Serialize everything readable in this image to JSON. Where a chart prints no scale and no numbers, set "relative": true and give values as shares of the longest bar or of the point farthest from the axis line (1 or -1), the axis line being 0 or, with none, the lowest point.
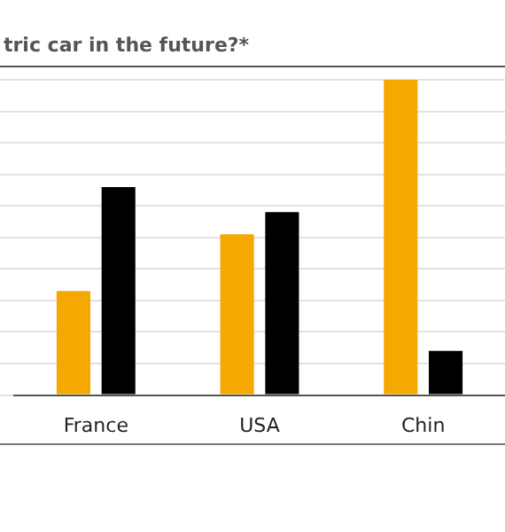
{
  "chart_data": {
    "type": "bar",
    "title": "tric car in the future?*",
    "categories": [
      "France",
      "USA",
      "Chin"
    ],
    "series": [
      {
        "color": "#f5a800",
        "values": [
          0.33,
          0.51,
          1
        ]
      },
      {
        "color": "#000000",
        "values": [
          0.66,
          0.58,
          0.14
        ]
      }
    ],
    "relative": true,
    "grid": "y",
    "legend": false
  }
}
